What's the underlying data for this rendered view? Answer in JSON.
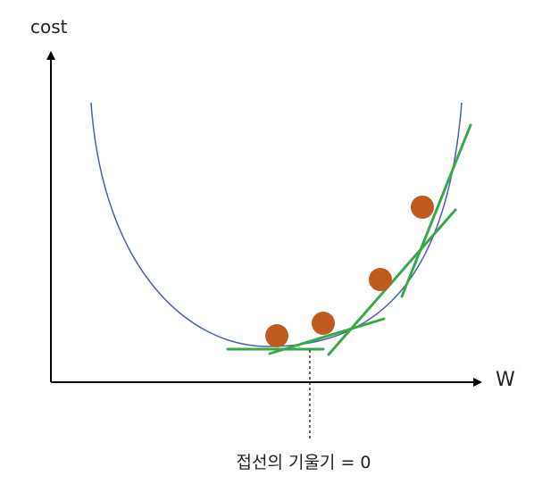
{
  "labels": {
    "y_axis": "cost",
    "x_axis": "W",
    "annotation": "접선의 기울기 = 0"
  }
}
